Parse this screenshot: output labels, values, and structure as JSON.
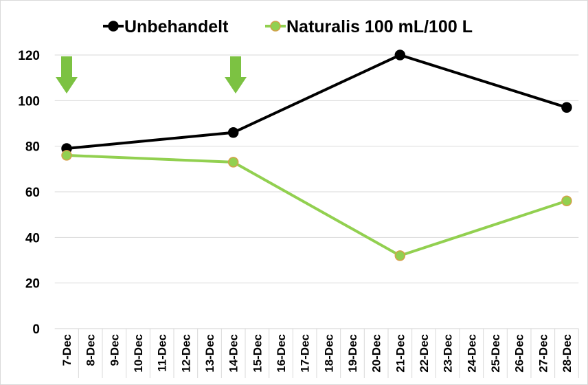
{
  "chart_data": {
    "type": "line",
    "x": [
      7,
      14,
      21,
      28
    ],
    "xlim": [
      6.5,
      28.5
    ],
    "xticks": [
      {
        "value": 7,
        "label": "7-Dec"
      },
      {
        "value": 8,
        "label": "8-Dec"
      },
      {
        "value": 9,
        "label": "9-Dec"
      },
      {
        "value": 10,
        "label": "10-Dec"
      },
      {
        "value": 11,
        "label": "11-Dec"
      },
      {
        "value": 12,
        "label": "12-Dec"
      },
      {
        "value": 13,
        "label": "13-Dec"
      },
      {
        "value": 14,
        "label": "14-Dec"
      },
      {
        "value": 15,
        "label": "15-Dec"
      },
      {
        "value": 16,
        "label": "16-Dec"
      },
      {
        "value": 17,
        "label": "17-Dec"
      },
      {
        "value": 18,
        "label": "18-Dec"
      },
      {
        "value": 19,
        "label": "19-Dec"
      },
      {
        "value": 20,
        "label": "20-Dec"
      },
      {
        "value": 21,
        "label": "21-Dec"
      },
      {
        "value": 22,
        "label": "22-Dec"
      },
      {
        "value": 23,
        "label": "23-Dec"
      },
      {
        "value": 24,
        "label": "24-Dec"
      },
      {
        "value": 25,
        "label": "25-Dec"
      },
      {
        "value": 26,
        "label": "26-Dec"
      },
      {
        "value": 27,
        "label": "27-Dec"
      },
      {
        "value": 28,
        "label": "28-Dec"
      }
    ],
    "ylim": [
      0,
      120
    ],
    "yticks": [
      0,
      20,
      40,
      60,
      80,
      100,
      120
    ],
    "grid": true,
    "legend": "top",
    "series": [
      {
        "name": "Unbehandelt",
        "color": "#000000",
        "values": [
          79,
          86,
          120,
          97
        ]
      },
      {
        "name": "Naturalis 100 mL/100 L",
        "color": "#92d050",
        "values": [
          76,
          73,
          32,
          56
        ]
      }
    ]
  }
}
